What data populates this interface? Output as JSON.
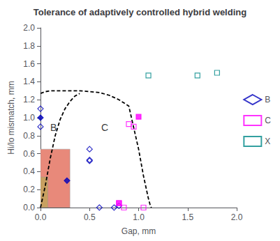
{
  "chart_data": {
    "type": "scatter",
    "title": "Tolerance of adaptively controlled hybrid welding",
    "xlabel": "Gap, mm",
    "ylabel": "Hi/lo mismatch, mm",
    "xlim": [
      0,
      2
    ],
    "ylim": [
      0,
      2
    ],
    "xticks": [
      {
        "value": 0,
        "label": "0.0"
      },
      0.5,
      {
        "value": 1.0,
        "label": "1.0"
      },
      1.5,
      {
        "value": 2.0,
        "label": "2.0"
      }
    ],
    "yticks": [
      {
        "value": 0,
        "label": "0.0"
      },
      0.2,
      0.4,
      0.6,
      0.8,
      {
        "value": 1.0,
        "label": "1.0"
      },
      1.2,
      1.4,
      1.6,
      1.8,
      {
        "value": 2.0,
        "label": "2.0"
      }
    ],
    "grid": false,
    "legend": "right",
    "series": [
      {
        "type": "rect",
        "color": "#E8897A",
        "x": 0.0,
        "y": 0.0,
        "width": 0.3,
        "height": 0.65
      },
      {
        "type": "rect",
        "color": "#C8A060",
        "x": 0.0,
        "y": 0.0,
        "width": 0.075,
        "height": 0.34
      },
      {
        "type": "line",
        "color": "#000000",
        "line_style": "dashed",
        "x": [
          0.0,
          0.05,
          0.1,
          0.15,
          0.2,
          0.3,
          0.4,
          0.5,
          0.6,
          0.7,
          0.8,
          0.9,
          1.0,
          1.05,
          1.1,
          1.12,
          1.13
        ],
        "values": [
          1.27,
          1.29,
          1.3,
          1.3,
          1.3,
          1.3,
          1.3,
          1.29,
          1.28,
          1.25,
          1.2,
          1.13,
          0.65,
          0.35,
          0.1,
          0.02,
          0.0
        ]
      },
      {
        "type": "line",
        "color": "#000000",
        "line_style": "dashed",
        "x": [
          0.0,
          0.05,
          0.1,
          0.15,
          0.2,
          0.25,
          0.3,
          0.35,
          0.4
        ],
        "values": [
          0.0,
          0.25,
          0.55,
          0.8,
          0.98,
          1.1,
          1.18,
          1.24,
          1.27
        ]
      },
      {
        "type": "scatter",
        "name": "B",
        "color": "#0000BB",
        "marker": "diamond-open",
        "x": [
          0.0,
          0.0,
          0.5,
          0.5,
          0.5,
          0.6,
          0.75,
          0.8
        ],
        "values": [
          1.1,
          0.9,
          0.65,
          0.53,
          0.52,
          0.0,
          0.0,
          0.02
        ]
      },
      {
        "type": "scatter",
        "name": "B",
        "color": "#0000BB",
        "marker": "diamond",
        "x": [
          0.0,
          0.27
        ],
        "values": [
          1.0,
          0.3
        ]
      },
      {
        "type": "scatter",
        "name": "C",
        "color": "#FF00FF",
        "marker": "square-open",
        "x": [
          0.8,
          0.85,
          0.9,
          0.95,
          1.05
        ],
        "values": [
          0.05,
          0.0,
          0.93,
          0.9,
          0.0
        ]
      },
      {
        "type": "scatter",
        "name": "C",
        "color": "#FF00FF",
        "marker": "square",
        "x": [
          0.8,
          1.0
        ],
        "values": [
          0.05,
          1.01
        ]
      },
      {
        "type": "scatter",
        "name": "X",
        "color": "#008888",
        "marker": "square-open",
        "x": [
          1.1,
          1.6,
          1.8
        ],
        "values": [
          1.47,
          1.47,
          1.5
        ]
      }
    ],
    "annotations": [
      {
        "text": "B",
        "x": 0.1,
        "y": 0.84
      },
      {
        "text": "C",
        "x": 0.62,
        "y": 0.84
      }
    ]
  }
}
